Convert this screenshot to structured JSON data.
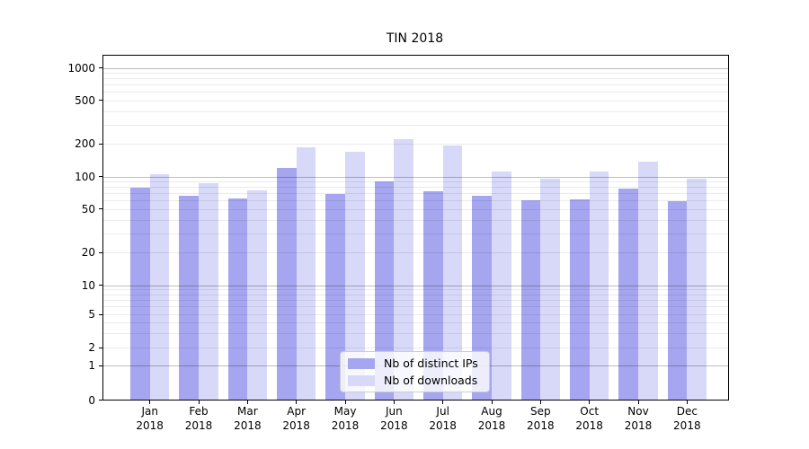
{
  "title": "TIN 2018",
  "colors": {
    "ips_bar": "#a5a5f0",
    "downloads_bar": "#d8d8f8",
    "spine": "#000000",
    "grid_major": "#bdbdbd",
    "grid_minor": "#ebebeb"
  },
  "chart_data": {
    "type": "bar",
    "title": "TIN 2018",
    "scale": "symlog (log above 1, labeled ticks at 1-2-5 pattern)",
    "grid": "both (major darker at powers of 10, minor light)",
    "legend_position": "lower center",
    "categories": [
      "Jan",
      "Feb",
      "Mar",
      "Apr",
      "May",
      "Jun",
      "Jul",
      "Aug",
      "Sep",
      "Oct",
      "Nov",
      "Dec"
    ],
    "year_label": "2018",
    "series": [
      {
        "name": "Nb of distinct IPs",
        "color": "#a5a5f0",
        "values": [
          77,
          65,
          61,
          118,
          68,
          88,
          72,
          65,
          59,
          60,
          76,
          58
        ]
      },
      {
        "name": "Nb of downloads",
        "color": "#d8d8f8",
        "values": [
          103,
          85,
          73,
          182,
          165,
          215,
          189,
          108,
          93,
          109,
          135,
          93
        ]
      }
    ],
    "yticks": [
      1000,
      500,
      200,
      100,
      50,
      20,
      10,
      5,
      2,
      1,
      0
    ],
    "ylim": [
      0,
      1300
    ],
    "xlabel": "",
    "ylabel": ""
  }
}
